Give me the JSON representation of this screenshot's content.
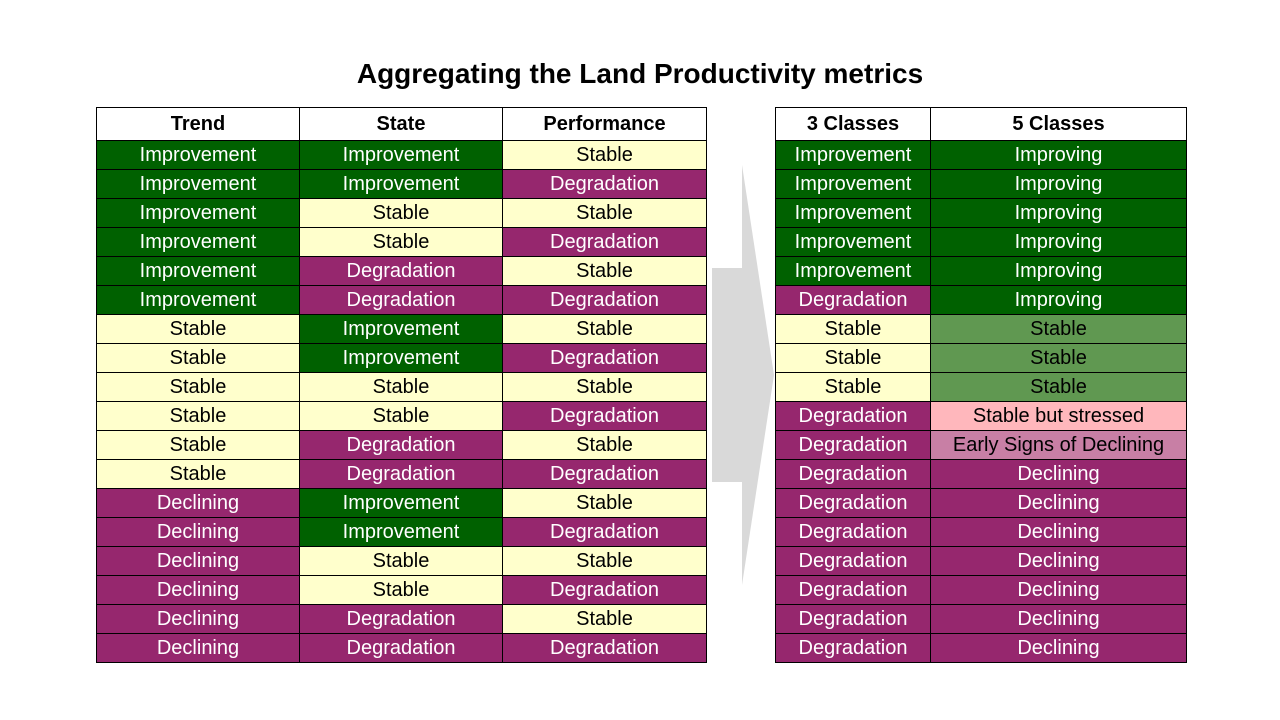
{
  "title": "Aggregating the Land Productivity metrics",
  "colors": {
    "improvement": "#006100",
    "stable": "#ffffcc",
    "degradation": "#96276e",
    "stable_5class": "#609851",
    "stable_but_stressed": "#ffb7bc",
    "early_signs_of_declining": "#c87fa5",
    "arrow": "#d9d9d9"
  },
  "left_table": {
    "headers": [
      "Trend",
      "State",
      "Performance"
    ],
    "rows": [
      [
        "Improvement",
        "Improvement",
        "Stable"
      ],
      [
        "Improvement",
        "Improvement",
        "Degradation"
      ],
      [
        "Improvement",
        "Stable",
        "Stable"
      ],
      [
        "Improvement",
        "Stable",
        "Degradation"
      ],
      [
        "Improvement",
        "Degradation",
        "Stable"
      ],
      [
        "Improvement",
        "Degradation",
        "Degradation"
      ],
      [
        "Stable",
        "Improvement",
        "Stable"
      ],
      [
        "Stable",
        "Improvement",
        "Degradation"
      ],
      [
        "Stable",
        "Stable",
        "Stable"
      ],
      [
        "Stable",
        "Stable",
        "Degradation"
      ],
      [
        "Stable",
        "Degradation",
        "Stable"
      ],
      [
        "Stable",
        "Degradation",
        "Degradation"
      ],
      [
        "Declining",
        "Improvement",
        "Stable"
      ],
      [
        "Declining",
        "Improvement",
        "Degradation"
      ],
      [
        "Declining",
        "Stable",
        "Stable"
      ],
      [
        "Declining",
        "Stable",
        "Degradation"
      ],
      [
        "Declining",
        "Degradation",
        "Stable"
      ],
      [
        "Declining",
        "Degradation",
        "Degradation"
      ]
    ]
  },
  "right_table": {
    "headers": [
      "3 Classes",
      "5 Classes"
    ],
    "rows": [
      [
        "Improvement",
        "Improving"
      ],
      [
        "Improvement",
        "Improving"
      ],
      [
        "Improvement",
        "Improving"
      ],
      [
        "Improvement",
        "Improving"
      ],
      [
        "Improvement",
        "Improving"
      ],
      [
        "Degradation",
        "Improving"
      ],
      [
        "Stable",
        "Stable"
      ],
      [
        "Stable",
        "Stable"
      ],
      [
        "Stable",
        "Stable"
      ],
      [
        "Degradation",
        "Stable but stressed"
      ],
      [
        "Degradation",
        "Early Signs of Declining"
      ],
      [
        "Degradation",
        "Declining"
      ],
      [
        "Degradation",
        "Declining"
      ],
      [
        "Degradation",
        "Declining"
      ],
      [
        "Degradation",
        "Declining"
      ],
      [
        "Degradation",
        "Declining"
      ],
      [
        "Degradation",
        "Declining"
      ],
      [
        "Degradation",
        "Declining"
      ]
    ]
  }
}
